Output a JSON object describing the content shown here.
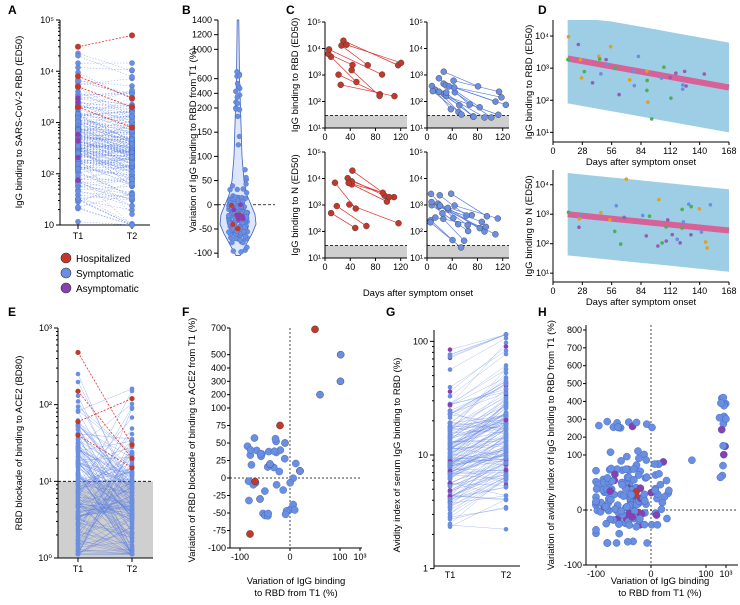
{
  "colors": {
    "hospitalized": "#c0392b",
    "symptomatic": "#6b8fe0",
    "asymptomatic": "#8a3fb0",
    "line_blue": "#5a7ee0",
    "line_red": "#e03030",
    "band": "#8cc6e0",
    "trend": "#e0508a",
    "grey": "#cfcfcf"
  },
  "legend": {
    "items": [
      {
        "label": "Hospitalized",
        "color_key": "hospitalized"
      },
      {
        "label": "Symptomatic",
        "color_key": "symptomatic"
      },
      {
        "label": "Asymptomatic",
        "color_key": "asymptomatic"
      }
    ]
  },
  "chart_data": [
    {
      "panel": "A",
      "type": "scatter",
      "title": "",
      "ylabel": "IgG binding to SARS-CoV-2 RBD (ED50)",
      "categories": [
        "T1",
        "T2"
      ],
      "yscale": "log",
      "ylim": [
        10,
        100000
      ],
      "yticks": [
        {
          "v": 10,
          "l": "10"
        },
        {
          "v": 100,
          "l": "10²"
        },
        {
          "v": 1000,
          "l": "10³"
        },
        {
          "v": 10000,
          "l": "10⁴"
        },
        {
          "v": 100000,
          "l": "10⁵"
        }
      ],
      "series": [
        {
          "name": "Hospitalized",
          "pairs": [
            [
              30000,
              50000
            ],
            [
              8000,
              3000
            ],
            [
              5000,
              2000
            ],
            [
              2000,
              800
            ]
          ]
        },
        {
          "name": "Symptomatic",
          "pairs": [
            [
              1500,
              800
            ],
            [
              400,
              300
            ],
            [
              200,
              150
            ],
            [
              900,
              500
            ],
            [
              100,
              60
            ],
            [
              50,
              30
            ],
            [
              3000,
              2000
            ],
            [
              600,
              400
            ]
          ]
        }
      ]
    },
    {
      "panel": "B",
      "type": "violin",
      "ylabel": "Variation of IgG binding to RBD from T1 (%)",
      "yticks": [
        {
          "v": -100,
          "l": "-100"
        },
        {
          "v": -50,
          "l": "-50"
        },
        {
          "v": 0,
          "l": "0"
        },
        {
          "v": 50,
          "l": "50"
        },
        {
          "v": 100,
          "l": "100"
        },
        {
          "v": 150,
          "l": "150"
        },
        {
          "v": 200,
          "l": "200"
        },
        {
          "v": 400,
          "l": "400"
        },
        {
          "v": 600,
          "l": "600"
        },
        {
          "v": 1000,
          "l": "1000"
        },
        {
          "v": 1200,
          "l": "1200"
        },
        {
          "v": 1400,
          "l": "1400"
        }
      ],
      "ylim": [
        -110,
        1400
      ],
      "reference_line": 0
    },
    {
      "panel": "C",
      "type": "line",
      "ylabel_top": "IgG binding to RBD (ED50)",
      "ylabel_bottom": "IgG binding to N (ED50)",
      "xlabel": "Days after symptom onset",
      "xticks_left": [
        "0",
        "40",
        "80",
        "120"
      ],
      "xticks_right": [
        "0",
        "40",
        "80",
        "120"
      ],
      "ytick_labels": [
        "10¹",
        "10²",
        "10³",
        "10⁴",
        "10⁵"
      ],
      "ylim": [
        10,
        100000
      ],
      "threshold": 30
    },
    {
      "panel": "D",
      "type": "line",
      "ylabel_top": "IgG binding to RBD (ED50)",
      "ylabel_bottom": "IgG binding to N (ED50)",
      "xlabel": "Days after symptom onset",
      "xticks": [
        "0",
        "28",
        "56",
        "84",
        "112",
        "140",
        "168"
      ],
      "ytick_labels": [
        "10¹",
        "10²",
        "10³",
        "10⁴"
      ],
      "trend_top": [
        [
          14,
          2000
        ],
        [
          168,
          250
        ]
      ],
      "trend_bottom": [
        [
          14,
          1000
        ],
        [
          168,
          280
        ]
      ]
    },
    {
      "panel": "E",
      "type": "scatter",
      "ylabel": "RBD blockade of binding to ACE2 (BD80)",
      "categories": [
        "T1",
        "T2"
      ],
      "ytick_labels": [
        "10⁰",
        "10¹",
        "10²",
        "10³"
      ],
      "ylim": [
        1,
        1000
      ],
      "threshold": 10
    },
    {
      "panel": "F",
      "type": "scatter",
      "ylabel": "Variation of RBD blockade of binding to ACE2 from T1 (%)",
      "xlabel_line1": "Variation of IgG binding",
      "xlabel_line2": "to RBD from T1 (%)",
      "xticks": [
        "-100",
        "0",
        "100",
        "10³"
      ],
      "yticks": [
        {
          "v": -100,
          "l": "-100"
        },
        {
          "v": -75,
          "l": "-75"
        },
        {
          "v": -50,
          "l": "-50"
        },
        {
          "v": -25,
          "l": "-25"
        },
        {
          "v": 0,
          "l": "0"
        },
        {
          "v": 25,
          "l": "25"
        },
        {
          "v": 50,
          "l": "50"
        },
        {
          "v": 75,
          "l": "75"
        },
        {
          "v": 100,
          "l": "100"
        },
        {
          "v": 200,
          "l": "200"
        },
        {
          "v": 300,
          "l": "300"
        },
        {
          "v": 400,
          "l": "400"
        },
        {
          "v": 500,
          "l": "500"
        },
        {
          "v": 700,
          "l": "700"
        }
      ],
      "points": [
        [
          -60,
          -30,
          "symptomatic"
        ],
        [
          -20,
          75,
          "hospitalized"
        ],
        [
          50,
          690,
          "hospitalized"
        ],
        [
          -70,
          -5,
          "hospitalized"
        ],
        [
          -80,
          -80,
          "hospitalized"
        ],
        [
          120,
          300,
          "symptomatic"
        ],
        [
          130,
          500,
          "symptomatic"
        ],
        [
          60,
          200,
          "symptomatic"
        ],
        [
          -10,
          50,
          "symptomatic"
        ],
        [
          -40,
          20,
          "symptomatic"
        ],
        [
          20,
          10,
          "symptomatic"
        ]
      ]
    },
    {
      "panel": "G",
      "type": "scatter",
      "ylabel": "Avidity index of serum IgG binding to RBD (%)",
      "categories": [
        "T1",
        "T2"
      ],
      "ytick_labels": [
        "1",
        "10",
        "100"
      ],
      "ylim": [
        0.8,
        120
      ]
    },
    {
      "panel": "H",
      "type": "scatter",
      "ylabel": "Variation of avidity index of IgG binding to RBD from T1 (%)",
      "xlabel_line1": "Variation of IgG binding",
      "xlabel_line2": "to RBD from T1 (%)",
      "xticks": [
        "-100",
        "0",
        "100",
        "10³"
      ],
      "yticks": [
        {
          "v": -100,
          "l": "-100"
        },
        {
          "v": 0,
          "l": "0"
        },
        {
          "v": 100,
          "l": "100"
        },
        {
          "v": 200,
          "l": "200"
        },
        {
          "v": 300,
          "l": "300"
        },
        {
          "v": 400,
          "l": "400"
        },
        {
          "v": 500,
          "l": "500"
        },
        {
          "v": 600,
          "l": "600"
        },
        {
          "v": 700,
          "l": "700"
        },
        {
          "v": 800,
          "l": "800"
        }
      ]
    }
  ]
}
